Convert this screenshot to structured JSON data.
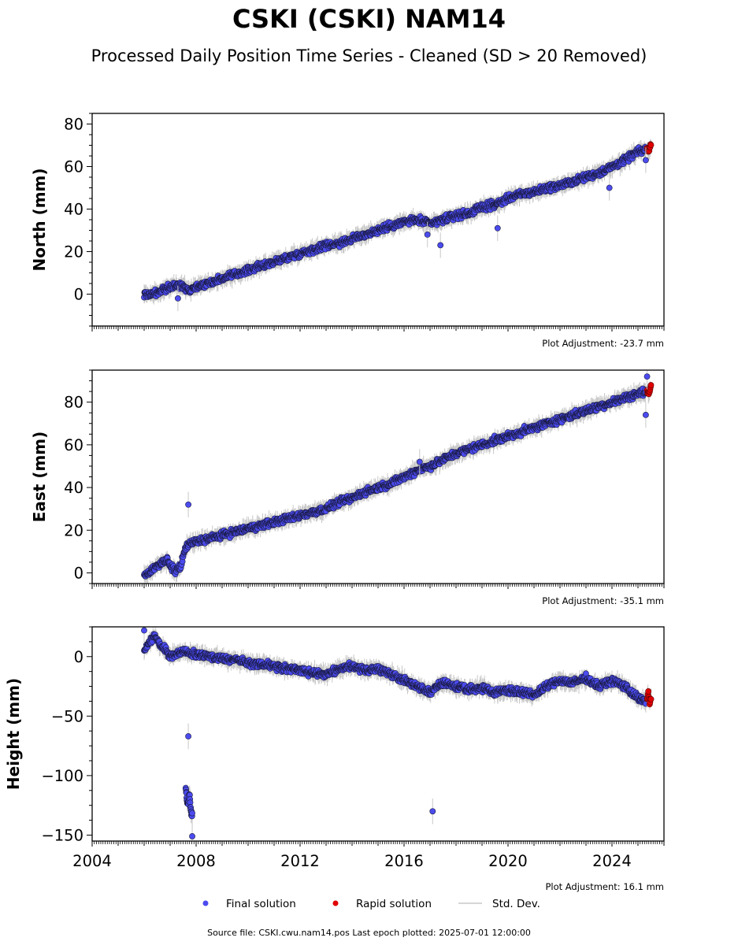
{
  "title": "CSKI (CSKI) NAM14",
  "subtitle": "Processed Daily Position Time Series - Cleaned (SD > 20 Removed)",
  "source_note": "Source file: CSKI.cwu.nam14.pos  Last epoch plotted: 2025-07-01 12:00:00",
  "legend": {
    "items": [
      {
        "label": "Final solution",
        "marker": "dot",
        "color": "#4b4bef"
      },
      {
        "label": "Rapid solution",
        "marker": "dot",
        "color": "#e00000"
      },
      {
        "label": "Std. Dev.",
        "marker": "line",
        "color": "#c8c8c8"
      }
    ]
  },
  "colors": {
    "final": "#4b4bef",
    "rapid": "#e00000",
    "stddev": "#c8c8c8",
    "edge": "#1a1a40"
  },
  "chart_data": [
    {
      "type": "scatter",
      "ylabel": "North (mm)",
      "xlim": [
        2004.0,
        2026.0
      ],
      "ylim": [
        -15,
        85
      ],
      "yticks": [
        0,
        20,
        40,
        60,
        80
      ],
      "adjustment": "Plot Adjustment: -23.7 mm",
      "show_xtick_labels": false,
      "series": [
        {
          "name": "Final solution",
          "x": [
            2006.0,
            2006.3,
            2006.6,
            2006.9,
            2007.2,
            2007.5,
            2007.7,
            2007.9,
            2013.0,
            2013.5,
            2014.0,
            2014.5,
            2015.0,
            2015.5,
            2016.0,
            2016.5,
            2017.0,
            2017.5,
            2018.0,
            2018.5,
            2019.0,
            2019.5,
            2020.0,
            2020.5,
            2021.0,
            2021.5,
            2022.0,
            2022.5,
            2023.0,
            2023.5,
            2024.0,
            2024.5,
            2025.0,
            2025.3
          ],
          "y": [
            0,
            0,
            1,
            3,
            4,
            4,
            2,
            3,
            23,
            24,
            26,
            28,
            30,
            32,
            34,
            35,
            33,
            35,
            37,
            38,
            41,
            42,
            45,
            47,
            48,
            50,
            51,
            53,
            55,
            57,
            60,
            63,
            67,
            68
          ]
        },
        {
          "name": "Rapid solution",
          "x": [
            2025.35,
            2025.4,
            2025.45,
            2025.5
          ],
          "y": [
            69,
            67,
            68,
            70
          ]
        }
      ],
      "outliers": {
        "x": [
          2016.9,
          2017.4,
          2019.6,
          2023.9,
          2025.3,
          2007.3
        ],
        "y": [
          28,
          23,
          31,
          50,
          63,
          -2
        ]
      }
    },
    {
      "type": "scatter",
      "ylabel": "East (mm)",
      "xlim": [
        2004.0,
        2026.0
      ],
      "ylim": [
        -5,
        95
      ],
      "yticks": [
        0,
        20,
        40,
        60,
        80
      ],
      "adjustment": "Plot Adjustment: -35.1 mm",
      "show_xtick_labels": false,
      "series": [
        {
          "name": "Final solution",
          "x": [
            2006.0,
            2006.3,
            2006.6,
            2006.9,
            2007.0,
            2007.2,
            2007.4,
            2007.6,
            2007.8,
            2013.0,
            2013.5,
            2014.0,
            2014.5,
            2015.0,
            2015.5,
            2016.0,
            2016.5,
            2017.0,
            2017.5,
            2018.0,
            2018.5,
            2019.0,
            2019.5,
            2020.0,
            2020.5,
            2021.0,
            2021.5,
            2022.0,
            2022.5,
            2023.0,
            2023.5,
            2024.0,
            2024.5,
            2025.0,
            2025.3
          ],
          "y": [
            -1,
            1,
            4,
            6,
            3,
            1,
            3,
            12,
            14,
            30,
            33,
            35,
            38,
            40,
            42,
            45,
            48,
            50,
            53,
            56,
            58,
            60,
            62,
            64,
            66,
            68,
            70,
            72,
            74,
            76,
            78,
            80,
            82,
            84,
            85
          ]
        },
        {
          "name": "Rapid solution",
          "x": [
            2025.35,
            2025.4,
            2025.45,
            2025.5
          ],
          "y": [
            86,
            84,
            85,
            87
          ]
        }
      ],
      "outliers": {
        "x": [
          2007.7,
          2016.6,
          2025.3,
          2025.35
        ],
        "y": [
          32,
          52,
          74,
          92
        ]
      }
    },
    {
      "type": "scatter",
      "ylabel": "Height (mm)",
      "xlim": [
        2004.0,
        2026.0
      ],
      "ylim": [
        -155,
        25
      ],
      "yticks": [
        -150,
        -100,
        -50,
        0
      ],
      "adjustment": "Plot Adjustment: 16.1 mm",
      "show_xtick_labels": true,
      "xticks": [
        2004,
        2008,
        2012,
        2016,
        2020,
        2024
      ],
      "series": [
        {
          "name": "Final solution",
          "x": [
            2006.0,
            2006.2,
            2006.4,
            2006.6,
            2006.8,
            2007.0,
            2007.2,
            2007.4,
            2013.0,
            2013.5,
            2014.0,
            2014.5,
            2015.0,
            2015.5,
            2016.0,
            2016.5,
            2017.0,
            2017.5,
            2018.0,
            2018.5,
            2019.0,
            2019.5,
            2020.0,
            2020.5,
            2021.0,
            2021.5,
            2022.0,
            2022.5,
            2023.0,
            2023.5,
            2024.0,
            2024.5,
            2025.0,
            2025.3
          ],
          "y": [
            5,
            12,
            18,
            10,
            6,
            0,
            2,
            4,
            -15,
            -10,
            -8,
            -12,
            -10,
            -15,
            -20,
            -25,
            -30,
            -22,
            -25,
            -28,
            -26,
            -30,
            -28,
            -30,
            -32,
            -25,
            -20,
            -22,
            -18,
            -25,
            -20,
            -25,
            -35,
            -38
          ]
        },
        {
          "name": "Rapid solution",
          "x": [
            2025.35,
            2025.4,
            2025.45,
            2025.5
          ],
          "y": [
            -36,
            -30,
            -40,
            -34
          ]
        },
        {
          "name": "Final solution",
          "x": [
            2007.6,
            2007.65,
            2007.7,
            2007.75,
            2007.8,
            2007.85
          ],
          "y": [
            -110,
            -120,
            -125,
            -115,
            -130,
            -135
          ]
        }
      ],
      "outliers": {
        "x": [
          2007.7,
          2007.85,
          2017.1,
          2006.0
        ],
        "y": [
          -67,
          -151,
          -130,
          22
        ]
      }
    }
  ]
}
